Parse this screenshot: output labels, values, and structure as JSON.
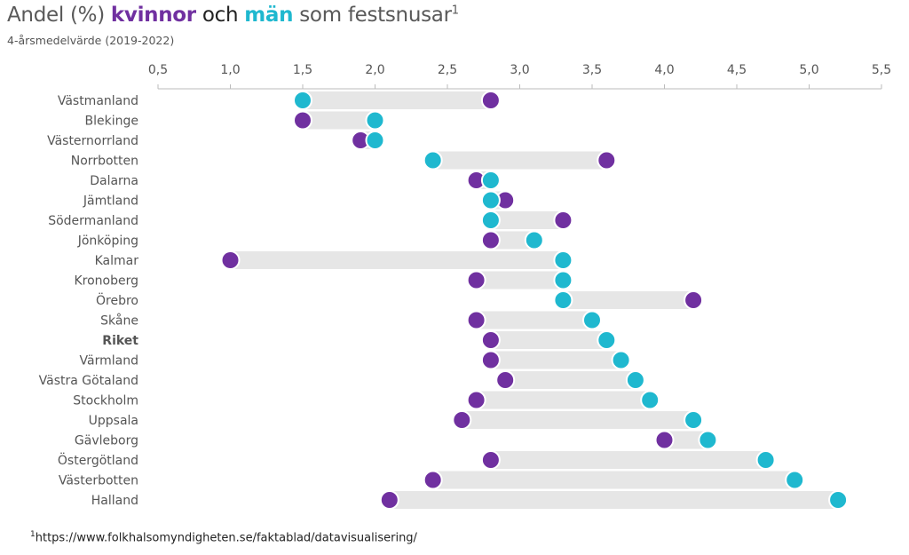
{
  "title": {
    "prefix": "Andel (%) ",
    "women": "kvinnor",
    "middle": " och ",
    "men": "män",
    "suffix": " som festsnusar",
    "sup": "1"
  },
  "subtitle": "4-årsmedelvärde (2019-2022)",
  "footnote": {
    "sup": "1",
    "text": "https://www.folkhalsomyndigheten.se/faktablad/datavisualisering/"
  },
  "colors": {
    "women": "#7030a0",
    "men": "#1fb8cf",
    "bar": "#e6e6e6"
  },
  "chart_data": {
    "type": "dumbbell",
    "xlim": [
      0.5,
      5.5
    ],
    "x_ticks": [
      "0,5",
      "1,0",
      "1,5",
      "2,0",
      "2,5",
      "3,0",
      "3,5",
      "4,0",
      "4,5",
      "5,0",
      "5,5"
    ],
    "x_axis_position": "top",
    "grid": false,
    "categories": [
      "Västmanland",
      "Blekinge",
      "Västernorrland",
      "Norrbotten",
      "Dalarna",
      "Jämtland",
      "Södermanland",
      "Jönköping",
      "Kalmar",
      "Kronoberg",
      "Örebro",
      "Skåne",
      "Riket",
      "Värmland",
      "Västra Götaland",
      "Stockholm",
      "Uppsala",
      "Gävleborg",
      "Östergötland",
      "Västerbotten",
      "Halland"
    ],
    "bold_category": "Riket",
    "series": [
      {
        "name": "kvinnor",
        "values": [
          2.8,
          1.5,
          1.9,
          3.6,
          2.7,
          2.9,
          3.3,
          2.8,
          1.0,
          2.7,
          4.2,
          2.7,
          2.8,
          2.8,
          2.9,
          2.7,
          2.6,
          4.0,
          2.8,
          2.4,
          2.1
        ]
      },
      {
        "name": "män",
        "values": [
          1.5,
          2.0,
          2.0,
          2.4,
          2.8,
          2.8,
          2.8,
          3.1,
          3.3,
          3.3,
          3.3,
          3.5,
          3.6,
          3.7,
          3.8,
          3.9,
          4.2,
          4.3,
          4.7,
          4.9,
          5.2
        ]
      }
    ]
  }
}
